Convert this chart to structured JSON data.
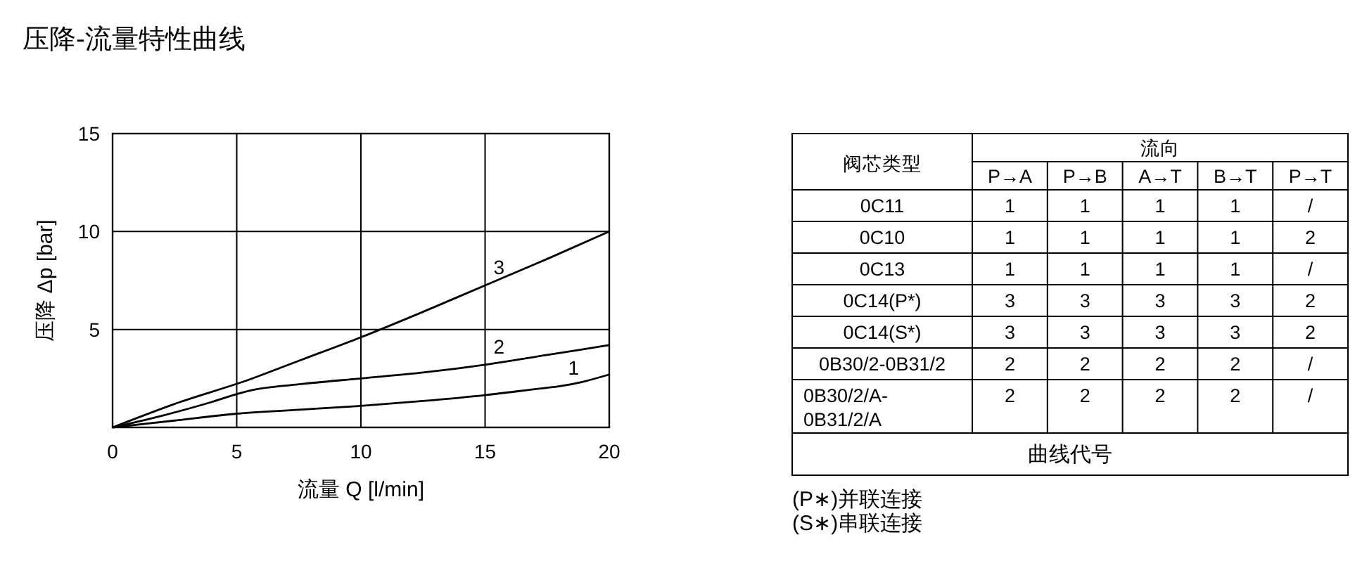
{
  "chart_data": [
    {
      "type": "line",
      "title": "压降-流量特性曲线",
      "xlabel": "流量 Q [l/min]",
      "ylabel": "压降 Δp [bar]",
      "xlim": [
        0,
        20
      ],
      "ylim": [
        0,
        15
      ],
      "xticks": [
        0,
        5,
        10,
        15,
        20
      ],
      "yticks": [
        5,
        10,
        15
      ],
      "grid": true,
      "marker": "none",
      "line_style": "solid",
      "series": [
        {
          "name": "1",
          "color": "#000000",
          "x": [
            0,
            2.5,
            5,
            7.5,
            10,
            12.5,
            15,
            17,
            18,
            19,
            20
          ],
          "values": [
            0,
            0.35,
            0.7,
            0.9,
            1.1,
            1.35,
            1.65,
            1.95,
            2.1,
            2.35,
            2.7
          ]
        },
        {
          "name": "2",
          "color": "#000000",
          "x": [
            0,
            2,
            4,
            5,
            5.5,
            7.5,
            10,
            12.5,
            15,
            17.5,
            20
          ],
          "values": [
            0,
            0.6,
            1.3,
            1.7,
            1.87,
            2.2,
            2.5,
            2.8,
            3.2,
            3.7,
            4.2
          ]
        },
        {
          "name": "3",
          "color": "#000000",
          "x": [
            0,
            2.5,
            5.5,
            7.5,
            10,
            12.5,
            15,
            17.5,
            20
          ],
          "values": [
            0,
            1.2,
            2.44,
            3.4,
            4.6,
            5.9,
            7.25,
            8.6,
            10.0
          ]
        }
      ]
    },
    {
      "type": "other",
      "xlabel": "流向",
      "ylabel": "阀芯类型",
      "categories": [
        "P→A",
        "P→B",
        "A→T",
        "B→T",
        "P→T"
      ],
      "y_categories": [
        "0C11",
        "0C10",
        "0C13",
        "0C14(P*)",
        "0C14(S*)",
        "0B30/2-0B31/2",
        "0B30/2/A-\n0B31/2/A"
      ],
      "cell_labels": [
        [
          "1",
          "1",
          "1",
          "1",
          "/"
        ],
        [
          "1",
          "1",
          "1",
          "1",
          "2"
        ],
        [
          "1",
          "1",
          "1",
          "1",
          "/"
        ],
        [
          "3",
          "3",
          "3",
          "3",
          "2"
        ],
        [
          "3",
          "3",
          "3",
          "3",
          "2"
        ],
        [
          "2",
          "2",
          "2",
          "2",
          "/"
        ],
        [
          "2",
          "2",
          "2",
          "2",
          "/"
        ]
      ],
      "annotations": [
        "曲线代号",
        "(P∗)并联连接",
        "(S∗)串联连接"
      ]
    }
  ]
}
